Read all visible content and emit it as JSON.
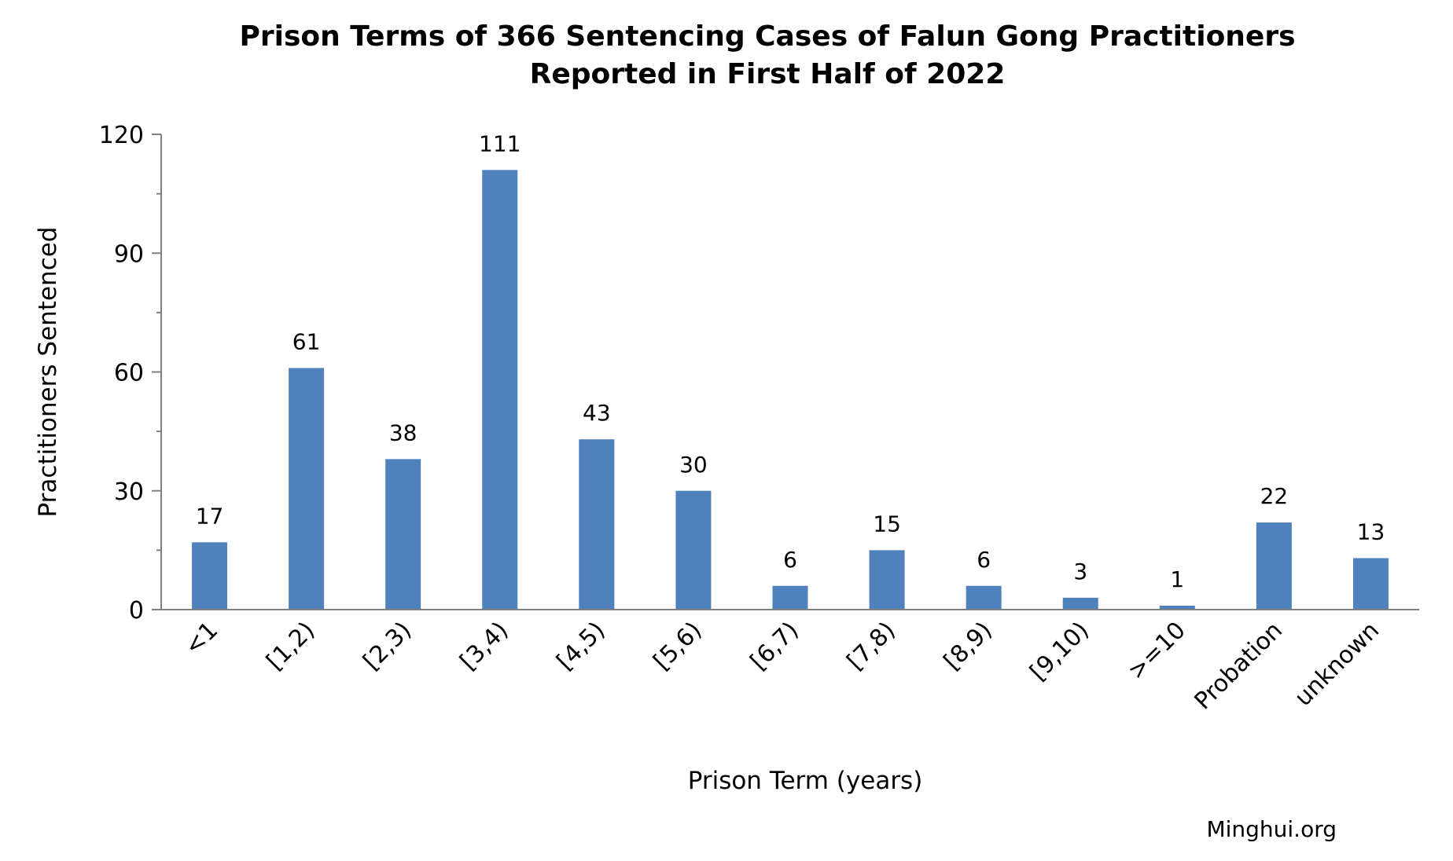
{
  "chart_data": {
    "type": "bar",
    "title_lines": [
      "Prison Terms of 366 Sentencing Cases of Falun Gong Practitioners",
      "Reported in First Half of 2022"
    ],
    "xlabel": "Prison Term (years)",
    "ylabel": "Practitioners Sentenced",
    "categories": [
      "<1",
      "[1,2)",
      "[2,3)",
      "[3,4)",
      "[4,5)",
      "[5,6)",
      "[6,7)",
      "[7,8)",
      "[8,9)",
      "[9,10)",
      ">=10",
      "Probation",
      "unknown"
    ],
    "values": [
      17,
      61,
      38,
      111,
      43,
      30,
      6,
      15,
      6,
      3,
      1,
      22,
      13
    ],
    "ylim": [
      0,
      120
    ],
    "yticks": [
      0,
      30,
      60,
      90,
      120
    ],
    "ytick_labels": [
      "0",
      "30",
      "60",
      "90",
      "120"
    ],
    "data_labels": [
      "17",
      "61",
      "38",
      "111",
      "43",
      "30",
      "6",
      "15",
      "6",
      "3",
      "1",
      "22",
      "13"
    ],
    "grid": false,
    "legend": "none",
    "bar_color": "#4F81BD"
  },
  "credit": "Minghui.org"
}
